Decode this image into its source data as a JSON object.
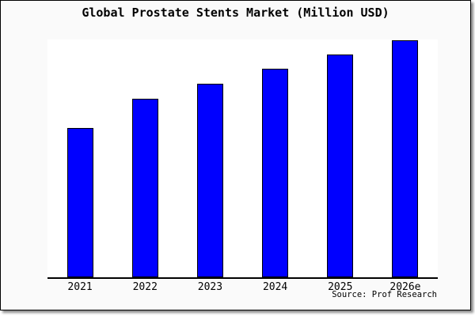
{
  "title": "Global Prostate Stents Market (Million USD)",
  "source_label": "Source: Prof Research",
  "colors": {
    "bar_fill": "#0000ff",
    "bar_border": "#000000",
    "card_background": "#fafafa",
    "plot_background": "#ffffff",
    "frame_border": "#000000"
  },
  "chart_data": {
    "type": "bar",
    "title": "Global Prostate Stents Market (Million USD)",
    "categories": [
      "2021",
      "2022",
      "2023",
      "2024",
      "2025",
      "2026e"
    ],
    "values": [
      189,
      226,
      245,
      264,
      282,
      300
    ],
    "value_scale_note": "no y-axis ticks or gridlines shown; values are relative bar heights in pixels",
    "xlabel": "",
    "ylabel": "",
    "ylim": [
      0,
      303
    ],
    "grid": false,
    "legend": false,
    "bar_color": "#0000ff",
    "annotations": [
      "Source: Prof Research"
    ]
  }
}
